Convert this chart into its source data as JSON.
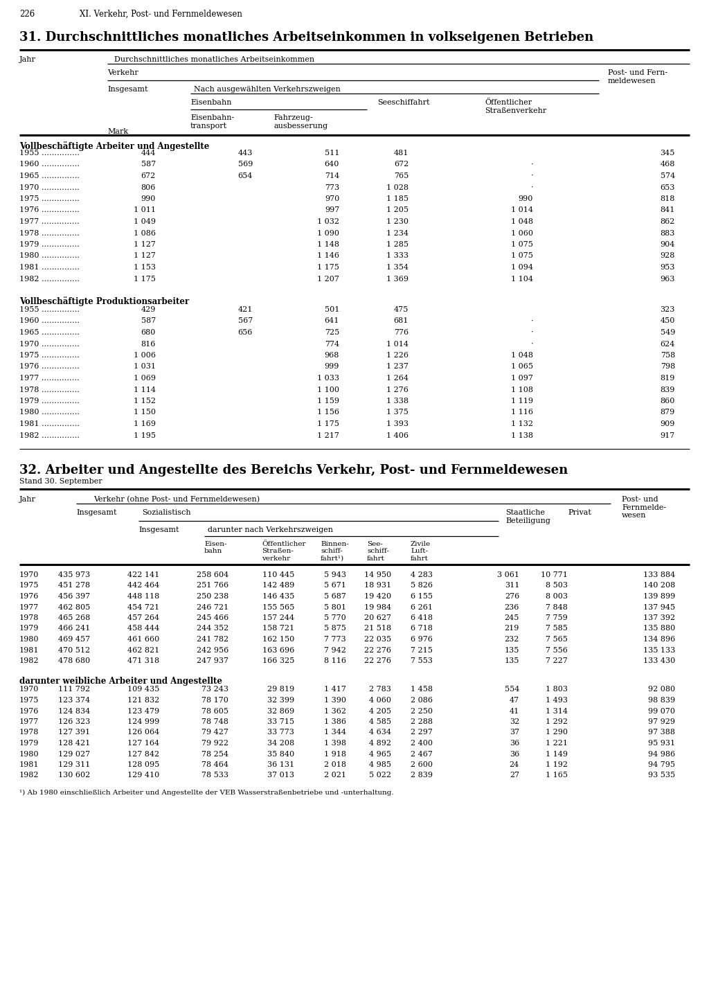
{
  "page_number": "226",
  "page_header": "XI. Verkehr, Post- und Fernmeldewesen",
  "table1_title": "31. Durchschnittliches monatliches Arbeitseinkommen in volkseigenen Betrieben",
  "table1_section1_title": "Vollbeschäftigte Arbeiter und Angestellte",
  "table1_section1": [
    [
      "1955",
      "444",
      "443",
      "511",
      "481",
      "",
      "345"
    ],
    [
      "1960",
      "587",
      "569",
      "640",
      "672",
      "·",
      "468"
    ],
    [
      "1965",
      "672",
      "654",
      "714",
      "765",
      "·",
      "574"
    ],
    [
      "1970",
      "806",
      "",
      "773",
      "1 028",
      "·",
      "653"
    ],
    [
      "1975",
      "990",
      "",
      "970",
      "1 185",
      "990",
      "818"
    ],
    [
      "1976",
      "1 011",
      "",
      "997",
      "1 205",
      "1 014",
      "841"
    ],
    [
      "1977",
      "1 049",
      "",
      "1 032",
      "1 230",
      "1 048",
      "862"
    ],
    [
      "1978",
      "1 086",
      "",
      "1 090",
      "1 234",
      "1 060",
      "883"
    ],
    [
      "1979",
      "1 127",
      "",
      "1 148",
      "1 285",
      "1 075",
      "904"
    ],
    [
      "1980",
      "1 127",
      "",
      "1 146",
      "1 333",
      "1 075",
      "928"
    ],
    [
      "1981",
      "1 153",
      "",
      "1 175",
      "1 354",
      "1 094",
      "953"
    ],
    [
      "1982",
      "1 175",
      "",
      "1 207",
      "1 369",
      "1 104",
      "963"
    ]
  ],
  "table1_section2_title": "Vollbeschäftigte Produktionsarbeiter",
  "table1_section2": [
    [
      "1955",
      "429",
      "421",
      "501",
      "475",
      "",
      "323"
    ],
    [
      "1960",
      "587",
      "567",
      "641",
      "681",
      "·",
      "450"
    ],
    [
      "1965",
      "680",
      "656",
      "725",
      "776",
      "·",
      "549"
    ],
    [
      "1970",
      "816",
      "",
      "774",
      "1 014",
      "·",
      "624"
    ],
    [
      "1975",
      "1 006",
      "",
      "968",
      "1 226",
      "1 048",
      "758"
    ],
    [
      "1976",
      "1 031",
      "",
      "999",
      "1 237",
      "1 065",
      "798"
    ],
    [
      "1977",
      "1 069",
      "",
      "1 033",
      "1 264",
      "1 097",
      "819"
    ],
    [
      "1978",
      "1 114",
      "",
      "1 100",
      "1 276",
      "1 108",
      "839"
    ],
    [
      "1979",
      "1 152",
      "",
      "1 159",
      "1 338",
      "1 119",
      "860"
    ],
    [
      "1980",
      "1 150",
      "",
      "1 156",
      "1 375",
      "1 116",
      "879"
    ],
    [
      "1981",
      "1 169",
      "",
      "1 175",
      "1 393",
      "1 132",
      "909"
    ],
    [
      "1982",
      "1 195",
      "",
      "1 217",
      "1 406",
      "1 138",
      "917"
    ]
  ],
  "table2_title": "32. Arbeiter und Angestellte des Bereichs Verkehr, Post- und Fernmeldewesen",
  "table2_subtitle": "Stand 30. September",
  "table2_data": [
    [
      "1970",
      "435 973",
      "422 141",
      "258 604",
      "110 445",
      "5 943",
      "14 950",
      "4 283",
      "3 061",
      "10 771",
      "133 884"
    ],
    [
      "1975",
      "451 278",
      "442 464",
      "251 766",
      "142 489",
      "5 671",
      "18 931",
      "5 826",
      "311",
      "8 503",
      "140 208"
    ],
    [
      "1976",
      "456 397",
      "448 118",
      "250 238",
      "146 435",
      "5 687",
      "19 420",
      "6 155",
      "276",
      "8 003",
      "139 899"
    ],
    [
      "1977",
      "462 805",
      "454 721",
      "246 721",
      "155 565",
      "5 801",
      "19 984",
      "6 261",
      "236",
      "7 848",
      "137 945"
    ],
    [
      "1978",
      "465 268",
      "457 264",
      "245 466",
      "157 244",
      "5 770",
      "20 627",
      "6 418",
      "245",
      "7 759",
      "137 392"
    ],
    [
      "1979",
      "466 241",
      "458 444",
      "244 352",
      "158 721",
      "5 875",
      "21 518",
      "6 718",
      "219",
      "7 585",
      "135 880"
    ],
    [
      "1980",
      "469 457",
      "461 660",
      "241 782",
      "162 150",
      "7 773",
      "22 035",
      "6 976",
      "232",
      "7 565",
      "134 896"
    ],
    [
      "1981",
      "470 512",
      "462 821",
      "242 956",
      "163 696",
      "7 942",
      "22 276",
      "7 215",
      "135",
      "7 556",
      "135 133"
    ],
    [
      "1982",
      "478 680",
      "471 318",
      "247 937",
      "166 325",
      "8 116",
      "22 276",
      "7 553",
      "135",
      "7 227",
      "133 430"
    ]
  ],
  "table2_section2_title": "darunter weibliche Arbeiter und Angestellte",
  "table2_section2": [
    [
      "1970",
      "111 792",
      "109 435",
      "73 243",
      "29 819",
      "1 417",
      "2 783",
      "1 458",
      "554",
      "1 803",
      "92 080"
    ],
    [
      "1975",
      "123 374",
      "121 832",
      "78 170",
      "32 399",
      "1 390",
      "4 060",
      "2 086",
      "47",
      "1 493",
      "98 839"
    ],
    [
      "1976",
      "124 834",
      "123 479",
      "78 605",
      "32 869",
      "1 362",
      "4 205",
      "2 250",
      "41",
      "1 314",
      "99 070"
    ],
    [
      "1977",
      "126 323",
      "124 999",
      "78 748",
      "33 715",
      "1 386",
      "4 585",
      "2 288",
      "32",
      "1 292",
      "97 929"
    ],
    [
      "1978",
      "127 391",
      "126 064",
      "79 427",
      "33 773",
      "1 344",
      "4 634",
      "2 297",
      "37",
      "1 290",
      "97 388"
    ],
    [
      "1979",
      "128 421",
      "127 164",
      "79 922",
      "34 208",
      "1 398",
      "4 892",
      "2 400",
      "36",
      "1 221",
      "95 931"
    ],
    [
      "1980",
      "129 027",
      "127 842",
      "78 254",
      "35 840",
      "1 918",
      "4 965",
      "2 467",
      "36",
      "1 149",
      "94 986"
    ],
    [
      "1981",
      "129 311",
      "128 095",
      "78 464",
      "36 131",
      "2 018",
      "4 985",
      "2 600",
      "24",
      "1 192",
      "94 795"
    ],
    [
      "1982",
      "130 602",
      "129 410",
      "78 533",
      "37 013",
      "2 021",
      "5 022",
      "2 839",
      "27",
      "1 165",
      "93 535"
    ]
  ],
  "footnote": "¹) Ab 1980 einschließlich Arbeiter und Angestellte der VEB Straßenbetriebe und -unterhaltung.",
  "bg_color": "#ffffff",
  "text_color": "#000000",
  "line_color": "#000000"
}
